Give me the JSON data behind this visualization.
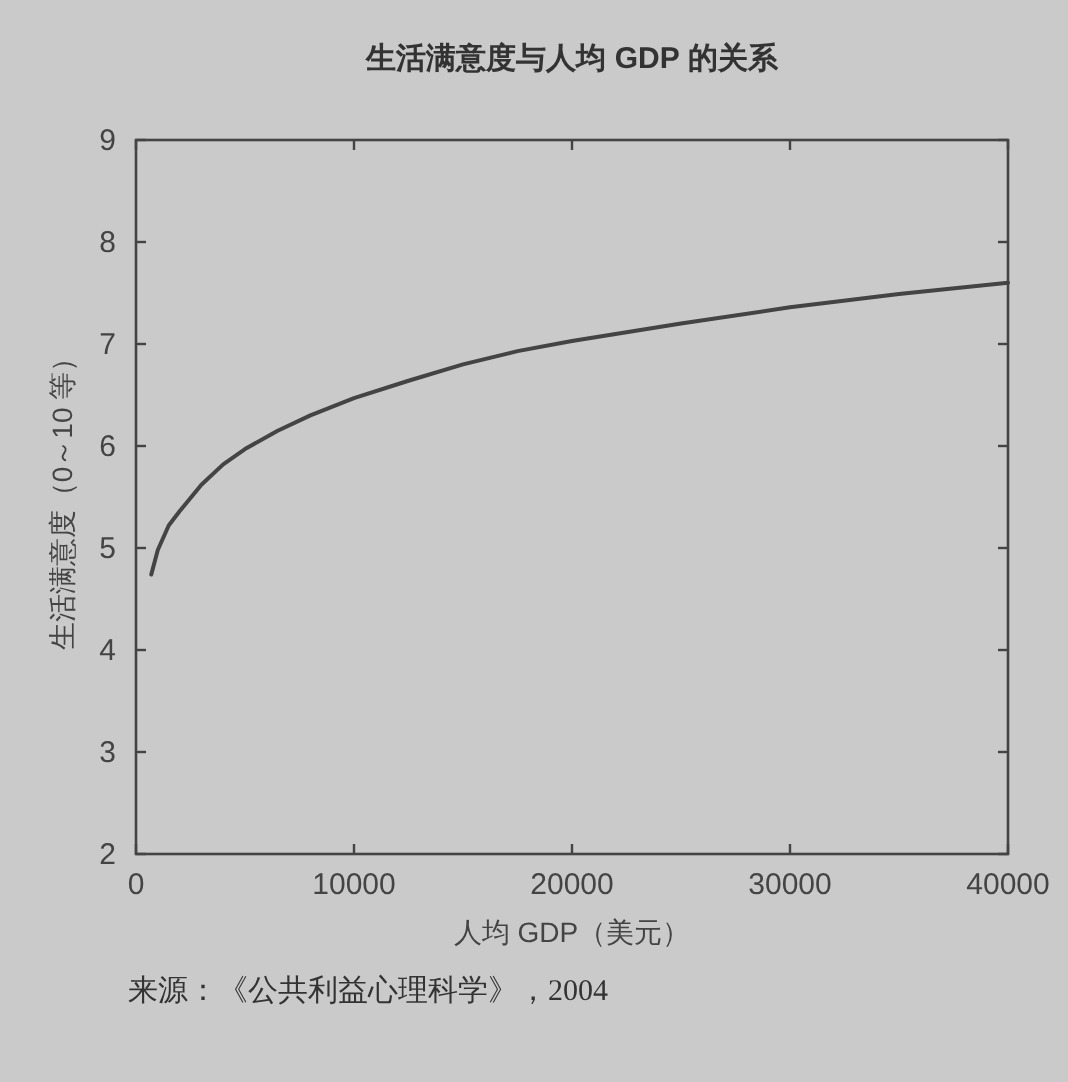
{
  "chart_data": {
    "type": "line",
    "title": "生活满意度与人均 GDP 的关系",
    "xlabel": "人均 GDP（美元）",
    "ylabel": "生活满意度（0～10 等）",
    "annotations": [
      "来源：《公共利益心理科学》，2004"
    ],
    "xlim": [
      0,
      40000
    ],
    "ylim": [
      2,
      9
    ],
    "xticks": [
      0,
      10000,
      20000,
      30000,
      40000
    ],
    "yticks": [
      2,
      3,
      4,
      5,
      6,
      7,
      8,
      9
    ],
    "series": [
      {
        "color": "#444444",
        "x": [
          700,
          1000,
          1500,
          2000,
          3000,
          4000,
          5000,
          6500,
          8000,
          10000,
          12500,
          15000,
          17500,
          20000,
          25000,
          30000,
          35000,
          40000
        ],
        "values": [
          4.74,
          4.98,
          5.22,
          5.36,
          5.62,
          5.82,
          5.97,
          6.15,
          6.3,
          6.47,
          6.64,
          6.8,
          6.93,
          7.03,
          7.2,
          7.36,
          7.49,
          7.6
        ]
      }
    ]
  }
}
